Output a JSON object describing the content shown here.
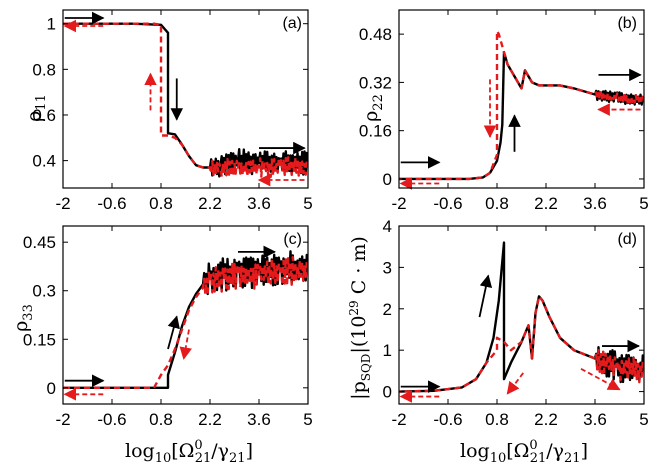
{
  "figure": {
    "xlabel": "log10[Ω21^0/γ21]",
    "xlabel_parts": {
      "base": "log",
      "base_sub": "10",
      "open": "[Ω",
      "sup": "0",
      "sub1": "21",
      "slash": "/γ",
      "sub2": "21",
      "close": "]"
    }
  },
  "chart_data": [
    {
      "id": "a",
      "type": "line",
      "panel_label": "(a)",
      "ylabel": "ρ11",
      "ylabel_parts": {
        "sym": "ρ",
        "sub": "11"
      },
      "xlabel": "log10[Ω21^0/γ21]",
      "xlim": [
        -2,
        5
      ],
      "ylim": [
        0.28,
        1.06
      ],
      "xticks": [
        "-2",
        "-0.6",
        "0.8",
        "2.2",
        "3.6",
        "5"
      ],
      "yticks": [
        {
          "value": 0.4,
          "label": "0.4"
        },
        {
          "value": 0.6,
          "label": "0.6"
        },
        {
          "value": 0.8,
          "label": "0.8"
        },
        {
          "value": 1.0,
          "label": "1"
        }
      ],
      "series": [
        {
          "name": "forward sweep",
          "color": "#000000",
          "dash": "none",
          "x": [
            -2,
            0,
            0.8,
            1.0,
            1.0,
            1.2,
            1.4,
            1.6,
            1.8,
            2.0,
            2.2,
            2.5,
            3.0,
            3.6,
            4.2,
            5.0
          ],
          "y": [
            1.0,
            1.0,
            0.995,
            0.96,
            0.52,
            0.515,
            0.47,
            0.42,
            0.38,
            0.37,
            0.37,
            0.38,
            0.4,
            0.39,
            0.39,
            0.39
          ],
          "noise": {
            "from_x": 2.2,
            "amplitude": 0.035
          }
        },
        {
          "name": "backward sweep",
          "color": "#e41a1c",
          "dash": "6 4",
          "x": [
            5.0,
            4.2,
            3.6,
            3.0,
            2.5,
            2.2,
            2.0,
            1.8,
            1.6,
            1.4,
            1.2,
            1.0,
            0.8,
            0.8,
            0.6,
            0.4,
            0.0,
            -2
          ],
          "y": [
            0.37,
            0.37,
            0.37,
            0.37,
            0.37,
            0.37,
            0.37,
            0.38,
            0.42,
            0.47,
            0.5,
            0.51,
            0.51,
            0.995,
            1.0,
            1.0,
            1.0,
            1.0
          ],
          "noise": {
            "from_x": 2.2,
            "amplitude": 0.03
          }
        }
      ],
      "annotations": [
        {
          "color": "#000000",
          "dash": "none",
          "x1": -1.95,
          "y1": 1.025,
          "x2": -0.85,
          "y2": 1.025
        },
        {
          "color": "#e41a1c",
          "dash": "6 4",
          "x1": -0.85,
          "y1": 0.99,
          "x2": -1.95,
          "y2": 0.99
        },
        {
          "color": "#e41a1c",
          "dash": "6 4",
          "x1": 0.5,
          "y1": 0.62,
          "x2": 0.5,
          "y2": 0.78
        },
        {
          "color": "#000000",
          "dash": "none",
          "x1": 1.25,
          "y1": 0.76,
          "x2": 1.25,
          "y2": 0.58
        },
        {
          "color": "#000000",
          "dash": "none",
          "x1": 3.6,
          "y1": 0.455,
          "x2": 4.9,
          "y2": 0.455
        },
        {
          "color": "#e41a1c",
          "dash": "6 4",
          "x1": 4.9,
          "y1": 0.315,
          "x2": 3.6,
          "y2": 0.315
        }
      ]
    },
    {
      "id": "b",
      "type": "line",
      "panel_label": "(b)",
      "ylabel": "ρ22",
      "ylabel_parts": {
        "sym": "ρ",
        "sub": "22"
      },
      "xlabel": "log10[Ω21^0/γ21]",
      "xlim": [
        -2,
        5
      ],
      "ylim": [
        -0.03,
        0.56
      ],
      "xticks": [
        "-2",
        "-0.6",
        "0.8",
        "2.2",
        "3.6",
        "5"
      ],
      "yticks": [
        {
          "value": 0.0,
          "label": "0"
        },
        {
          "value": 0.16,
          "label": "0.16"
        },
        {
          "value": 0.32,
          "label": "0.32"
        },
        {
          "value": 0.48,
          "label": "0.48"
        }
      ],
      "series": [
        {
          "name": "forward sweep",
          "color": "#000000",
          "dash": "none",
          "x": [
            -2,
            0,
            0.4,
            0.6,
            0.8,
            0.9,
            0.95,
            1.0,
            1.1,
            1.3,
            1.5,
            1.6,
            1.7,
            1.8,
            2.0,
            2.2,
            2.6,
            3.0,
            3.6,
            4.2,
            5.0
          ],
          "y": [
            0.0,
            0.0,
            0.005,
            0.02,
            0.06,
            0.12,
            0.18,
            0.42,
            0.38,
            0.34,
            0.3,
            0.36,
            0.34,
            0.32,
            0.31,
            0.31,
            0.31,
            0.3,
            0.28,
            0.27,
            0.26
          ],
          "noise": {
            "from_x": 3.4,
            "amplitude": 0.012
          }
        },
        {
          "name": "backward sweep",
          "color": "#e41a1c",
          "dash": "6 4",
          "x": [
            5.0,
            4.2,
            3.6,
            3.0,
            2.6,
            2.2,
            2.0,
            1.8,
            1.7,
            1.6,
            1.5,
            1.3,
            1.1,
            0.95,
            0.85,
            0.8,
            0.8,
            0.6,
            0.4,
            0.0,
            -2
          ],
          "y": [
            0.26,
            0.27,
            0.28,
            0.3,
            0.31,
            0.31,
            0.31,
            0.32,
            0.34,
            0.36,
            0.3,
            0.34,
            0.38,
            0.44,
            0.48,
            0.49,
            0.08,
            0.02,
            0.005,
            0.0,
            0.0
          ],
          "noise": {
            "from_x": 3.4,
            "amplitude": 0.01
          }
        }
      ],
      "annotations": [
        {
          "color": "#000000",
          "dash": "none",
          "x1": -1.95,
          "y1": 0.055,
          "x2": -0.85,
          "y2": 0.055
        },
        {
          "color": "#e41a1c",
          "dash": "6 4",
          "x1": -0.85,
          "y1": -0.015,
          "x2": -1.95,
          "y2": -0.015
        },
        {
          "color": "#e41a1c",
          "dash": "6 4",
          "x1": 0.6,
          "y1": 0.33,
          "x2": 0.6,
          "y2": 0.14
        },
        {
          "color": "#000000",
          "dash": "none",
          "x1": 1.3,
          "y1": 0.09,
          "x2": 1.3,
          "y2": 0.21
        },
        {
          "color": "#000000",
          "dash": "none",
          "x1": 3.7,
          "y1": 0.345,
          "x2": 4.9,
          "y2": 0.345
        },
        {
          "color": "#e41a1c",
          "dash": "6 4",
          "x1": 4.9,
          "y1": 0.23,
          "x2": 3.7,
          "y2": 0.23
        }
      ]
    },
    {
      "id": "c",
      "type": "line",
      "panel_label": "(c)",
      "ylabel": "ρ33",
      "ylabel_parts": {
        "sym": "ρ",
        "sub": "33"
      },
      "xlabel": "log10[Ω21^0/γ21]",
      "xlim": [
        -2,
        5
      ],
      "ylim": [
        -0.05,
        0.5
      ],
      "xticks": [
        "-2",
        "-0.6",
        "0.8",
        "2.2",
        "3.6",
        "5"
      ],
      "yticks": [
        {
          "value": 0.0,
          "label": "0"
        },
        {
          "value": 0.15,
          "label": "0.15"
        },
        {
          "value": 0.3,
          "label": "0.3"
        },
        {
          "value": 0.45,
          "label": "0.45"
        }
      ],
      "series": [
        {
          "name": "forward sweep",
          "color": "#000000",
          "dash": "none",
          "x": [
            -2,
            0,
            0.8,
            1.0,
            1.0,
            1.2,
            1.4,
            1.6,
            1.8,
            2.0,
            2.2,
            2.6,
            3.0,
            3.6,
            4.2,
            5.0
          ],
          "y": [
            0.0,
            0.0,
            0.0,
            0.0,
            0.04,
            0.11,
            0.19,
            0.25,
            0.29,
            0.32,
            0.34,
            0.35,
            0.36,
            0.36,
            0.37,
            0.37
          ],
          "noise": {
            "from_x": 2.0,
            "amplitude": 0.035
          }
        },
        {
          "name": "backward sweep",
          "color": "#e41a1c",
          "dash": "6 4",
          "x": [
            5.0,
            4.2,
            3.6,
            3.0,
            2.6,
            2.2,
            2.0,
            1.8,
            1.6,
            1.4,
            1.2,
            1.0,
            0.8,
            0.6,
            0.0,
            -2
          ],
          "y": [
            0.36,
            0.36,
            0.35,
            0.35,
            0.34,
            0.33,
            0.31,
            0.28,
            0.24,
            0.18,
            0.12,
            0.07,
            0.04,
            0.0,
            0.0,
            0.0
          ],
          "noise": {
            "from_x": 2.0,
            "amplitude": 0.03
          }
        }
      ],
      "annotations": [
        {
          "color": "#000000",
          "dash": "none",
          "x1": -1.95,
          "y1": 0.022,
          "x2": -0.85,
          "y2": 0.022
        },
        {
          "color": "#e41a1c",
          "dash": "6 4",
          "x1": -0.85,
          "y1": -0.02,
          "x2": -1.95,
          "y2": -0.02
        },
        {
          "color": "#000000",
          "dash": "none",
          "x1": 1.0,
          "y1": 0.12,
          "x2": 1.25,
          "y2": 0.22
        },
        {
          "color": "#e41a1c",
          "dash": "6 4",
          "x1": 1.6,
          "y1": 0.18,
          "x2": 1.45,
          "y2": 0.09
        },
        {
          "color": "#000000",
          "dash": "none",
          "x1": 3.0,
          "y1": 0.42,
          "x2": 4.05,
          "y2": 0.42
        }
      ]
    },
    {
      "id": "d",
      "type": "line",
      "panel_label": "(d)",
      "ylabel": "|pSQD|(10^29 C·m)",
      "ylabel_parts": {
        "open": "|p",
        "sub": "SQD",
        "mid": "|(10",
        "sup": "29",
        "unit": " C · m)"
      },
      "xlabel": "log10[Ω21^0/γ21]",
      "xlim": [
        -2,
        5
      ],
      "ylim": [
        -0.3,
        4.0
      ],
      "xticks": [
        "-2",
        "-0.6",
        "0.8",
        "2.2",
        "3.6",
        "5"
      ],
      "yticks": [
        {
          "value": 0,
          "label": "0"
        },
        {
          "value": 1,
          "label": "1"
        },
        {
          "value": 2,
          "label": "2"
        },
        {
          "value": 3,
          "label": "3"
        },
        {
          "value": 4,
          "label": "4"
        }
      ],
      "series": [
        {
          "name": "forward sweep",
          "color": "#000000",
          "dash": "none",
          "x": [
            -2,
            -1,
            -0.2,
            0.2,
            0.5,
            0.7,
            0.85,
            1.0,
            1.0,
            1.2,
            1.5,
            1.7,
            1.8,
            1.9,
            2.0,
            2.1,
            2.3,
            2.6,
            3.0,
            3.6,
            4.2,
            5.0
          ],
          "y": [
            0.0,
            0.02,
            0.1,
            0.3,
            0.7,
            1.3,
            2.2,
            3.6,
            0.3,
            0.7,
            1.2,
            1.6,
            0.8,
            1.9,
            2.3,
            2.2,
            1.8,
            1.3,
            1.0,
            0.8,
            0.6,
            0.5
          ],
          "noise": {
            "from_x": 3.3,
            "amplitude": 0.25
          }
        },
        {
          "name": "backward sweep",
          "color": "#e41a1c",
          "dash": "6 4",
          "x": [
            5.0,
            4.2,
            3.6,
            3.0,
            2.6,
            2.3,
            2.1,
            2.0,
            1.9,
            1.8,
            1.7,
            1.5,
            1.2,
            1.0,
            0.8,
            0.8,
            0.5,
            0.2,
            -0.2,
            -1,
            -2
          ],
          "y": [
            0.5,
            0.6,
            0.8,
            1.0,
            1.3,
            1.8,
            2.2,
            2.3,
            1.9,
            0.8,
            1.6,
            1.2,
            1.0,
            1.2,
            1.3,
            1.0,
            0.7,
            0.3,
            0.1,
            0.02,
            0.0
          ],
          "noise": {
            "from_x": 3.3,
            "amplitude": 0.2
          }
        }
      ],
      "annotations": [
        {
          "color": "#000000",
          "dash": "none",
          "x1": -1.95,
          "y1": 0.12,
          "x2": -0.85,
          "y2": 0.12
        },
        {
          "color": "#e41a1c",
          "dash": "6 4",
          "x1": -0.85,
          "y1": -0.12,
          "x2": -1.95,
          "y2": -0.12
        },
        {
          "color": "#000000",
          "dash": "none",
          "x1": 0.3,
          "y1": 1.8,
          "x2": 0.55,
          "y2": 2.8
        },
        {
          "color": "#e41a1c",
          "dash": "6 4",
          "x1": 1.55,
          "y1": 0.45,
          "x2": 1.1,
          "y2": -0.05
        },
        {
          "color": "#e41a1c",
          "dash": "6 4",
          "x1": 3.2,
          "y1": 0.55,
          "x2": 4.3,
          "y2": 0.05
        },
        {
          "color": "#000000",
          "dash": "none",
          "x1": 3.8,
          "y1": 1.1,
          "x2": 4.85,
          "y2": 1.1
        }
      ]
    }
  ]
}
